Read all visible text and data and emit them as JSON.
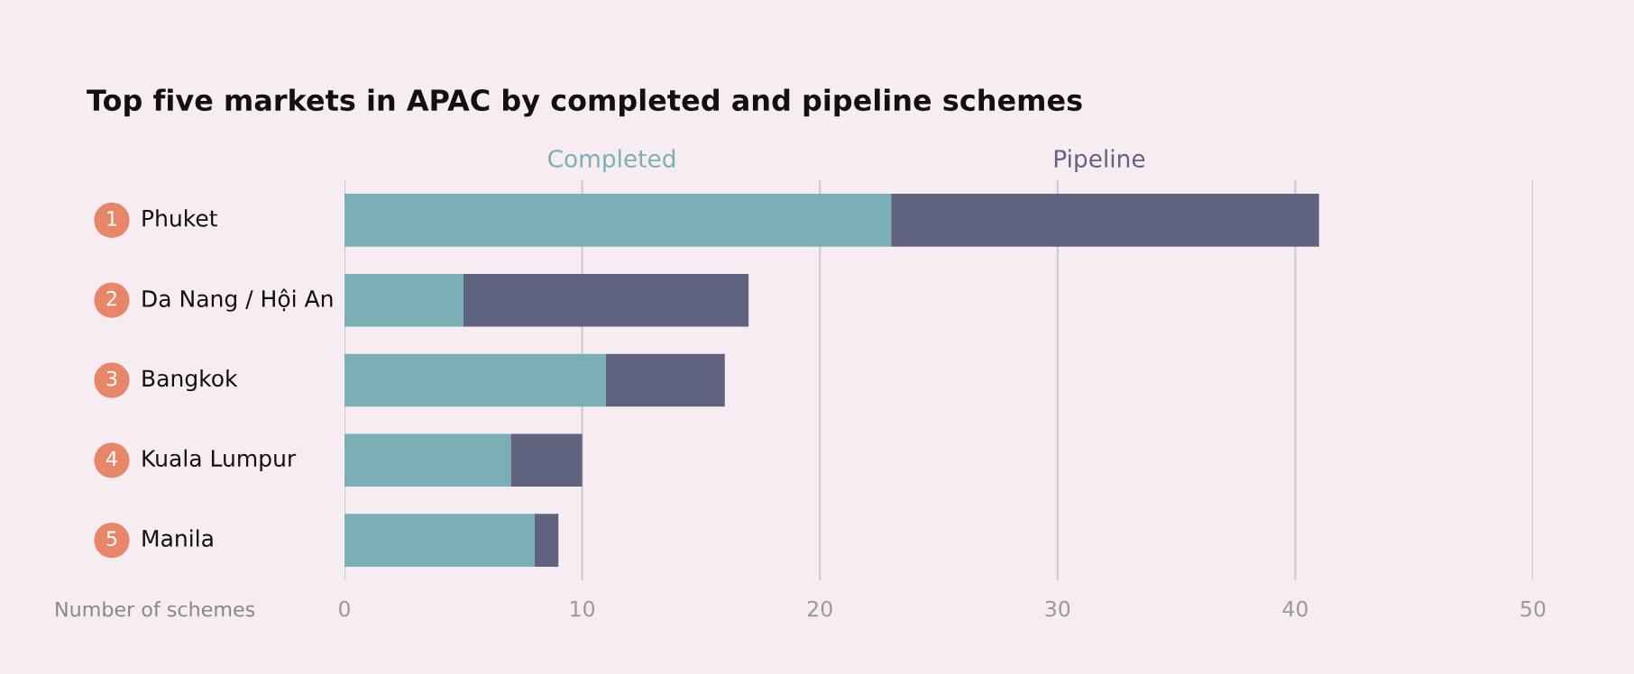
{
  "chart_data": {
    "type": "bar",
    "orientation": "horizontal",
    "stacked": true,
    "title": "Top five markets in APAC by completed and pipeline schemes",
    "xlabel": "Number of schemes",
    "categories": [
      "Phuket",
      "Da Nang / Hội An",
      "Bangkok",
      "Kuala Lumpur",
      "Manila"
    ],
    "series": [
      {
        "name": "Completed",
        "color": "#7aafb5",
        "values": [
          23,
          5,
          11,
          7,
          8
        ]
      },
      {
        "name": "Pipeline",
        "color": "#5f6380",
        "values": [
          18,
          12,
          5,
          3,
          1
        ]
      }
    ],
    "annotations": [
      "1",
      "2",
      "3",
      "4",
      "5"
    ],
    "xlim": [
      0,
      50
    ],
    "xticks": [
      0,
      10,
      20,
      30,
      40,
      50
    ],
    "grid": "x",
    "legend": "top"
  }
}
